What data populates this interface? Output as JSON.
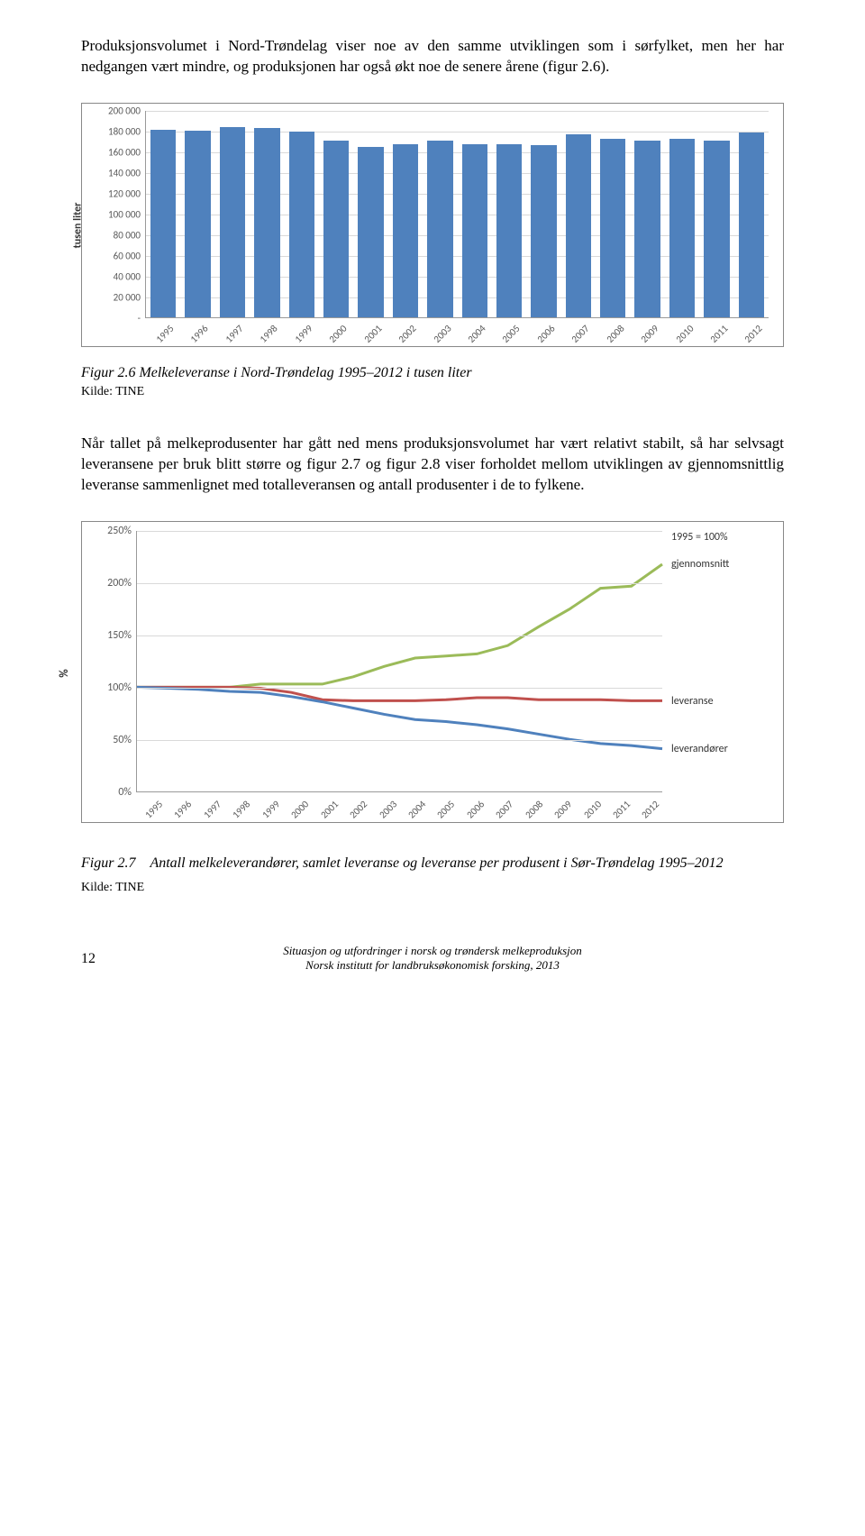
{
  "paragraph1": "Produksjonsvolumet i Nord-Trøndelag viser noe av den samme utviklingen som i sørfylket, men her har nedgangen vært mindre, og produksjonen har også økt noe de senere årene (figur 2.6).",
  "bar_chart": {
    "type": "bar",
    "ylabel": "tusen liter",
    "categories": [
      "1995",
      "1996",
      "1997",
      "1998",
      "1999",
      "2000",
      "2001",
      "2002",
      "2003",
      "2004",
      "2005",
      "2006",
      "2007",
      "2008",
      "2009",
      "2010",
      "2011",
      "2012"
    ],
    "values": [
      181000,
      180000,
      183000,
      182500,
      179000,
      170000,
      164000,
      167000,
      170000,
      167000,
      167000,
      166000,
      176000,
      172000,
      170000,
      172000,
      170000,
      178558
    ],
    "last_value_label": "178 558",
    "bar_color": "#4f81bd",
    "ymax": 200000,
    "ytick_step": 20000,
    "yticks": [
      "-",
      "20 000",
      "40 000",
      "60 000",
      "80 000",
      "100 000",
      "120 000",
      "140 000",
      "160 000",
      "180 000",
      "200 000"
    ],
    "grid_color": "#d9d9d9",
    "background": "#ffffff"
  },
  "caption1_label": "Figur 2.6 Melkeleveranse i Nord-Trøndelag 1995–2012 i tusen liter",
  "source1": "Kilde: TINE",
  "paragraph2": "Når tallet på melkeprodusenter har gått ned mens produksjonsvolumet har vært relativt stabilt, så har selvsagt leveransene per bruk blitt større og figur 2.7 og figur 2.8 viser forholdet mellom utviklingen av gjennomsnittlig leveranse sammenlignet med totalleveransen og antall produsenter i de to fylkene.",
  "line_chart": {
    "type": "line",
    "ylabel": "%",
    "categories": [
      "1995",
      "1996",
      "1997",
      "1998",
      "1999",
      "2000",
      "2001",
      "2002",
      "2003",
      "2004",
      "2005",
      "2006",
      "2007",
      "2008",
      "2009",
      "2010",
      "2011",
      "2012"
    ],
    "ymin": 0,
    "ymax": 250,
    "ytick_step": 50,
    "yticks": [
      "0%",
      "50%",
      "100%",
      "150%",
      "200%",
      "250%"
    ],
    "legend_note": "1995 = 100%",
    "series": [
      {
        "name": "gjennomsnitt",
        "color": "#9bbb59",
        "width": 3,
        "values": [
          100,
          100,
          100,
          100,
          103,
          103,
          103,
          110,
          120,
          128,
          130,
          132,
          140,
          158,
          175,
          195,
          197,
          218
        ]
      },
      {
        "name": "leveranse",
        "color": "#c0504d",
        "width": 3,
        "values": [
          100,
          100,
          100,
          100,
          99,
          95,
          88,
          87,
          87,
          87,
          88,
          90,
          90,
          88,
          88,
          88,
          87,
          87
        ]
      },
      {
        "name": "leverandører",
        "color": "#4f81bd",
        "width": 3,
        "values": [
          100,
          99,
          98,
          96,
          95,
          91,
          86,
          80,
          74,
          69,
          67,
          64,
          60,
          55,
          50,
          46,
          44,
          41
        ]
      }
    ],
    "grid_color": "#d9d9d9",
    "background": "#ffffff"
  },
  "caption2_label": "Figur 2.7",
  "caption2_text": "Antall melkeleverandører, samlet leveranse og leveranse per produsent i Sør-Trøndelag 1995–2012",
  "source2": "Kilde: TINE",
  "footer_line1": "Situasjon og utfordringer i norsk og trøndersk melkeproduksjon",
  "footer_line2": "Norsk institutt for landbruksøkonomisk forsking, 2013",
  "page_number": "12"
}
